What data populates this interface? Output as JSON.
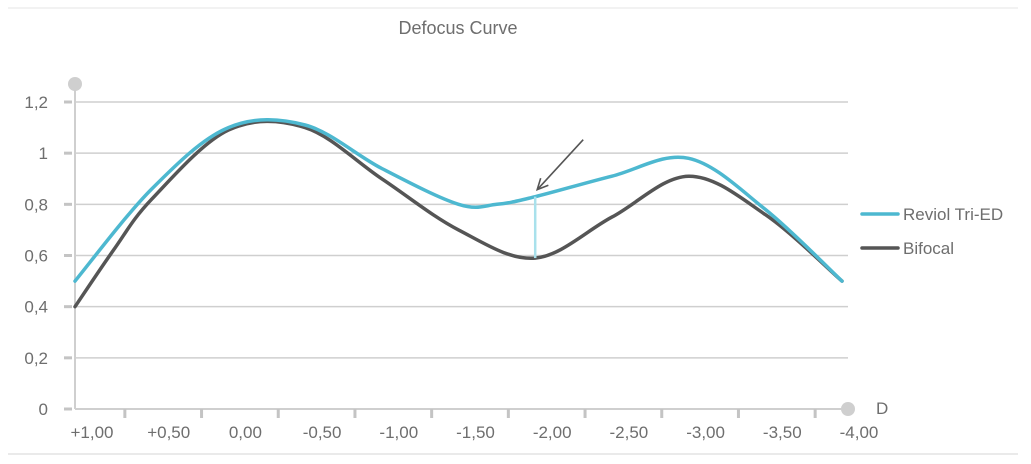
{
  "chart_data": {
    "type": "line",
    "title": "Defocus Curve",
    "xlabel": "D",
    "ylabel": "",
    "x_ticks": [
      "+1,00",
      "+0,50",
      "0,00",
      "-0,50",
      "-1,00",
      "-1,50",
      "-2,00",
      "-2,50",
      "-3,00",
      "-3,50",
      "-4,00"
    ],
    "x_tick_values": [
      1.0,
      0.5,
      0.0,
      -0.5,
      -1.0,
      -1.5,
      -2.0,
      -2.5,
      -3.0,
      -3.5,
      -4.0
    ],
    "xlim": [
      1.0,
      -4.0
    ],
    "y_ticks": [
      "0",
      "0,2",
      "0,4",
      "0,6",
      "0,8",
      "1",
      "1,2"
    ],
    "y_tick_values": [
      0,
      0.2,
      0.4,
      0.6,
      0.8,
      1.0,
      1.2
    ],
    "ylim": [
      0,
      1.2
    ],
    "grid": true,
    "legend_position": "right",
    "series": [
      {
        "name": "Reviol Tri-ED",
        "color": "#4db8d0",
        "x": [
          1.0,
          0.5,
          0.0,
          -0.5,
          -1.0,
          -1.5,
          -1.75,
          -2.0,
          -2.5,
          -3.0,
          -3.5,
          -4.0
        ],
        "y": [
          0.5,
          0.86,
          1.1,
          1.11,
          0.94,
          0.8,
          0.8,
          0.83,
          0.91,
          0.98,
          0.78,
          0.5
        ]
      },
      {
        "name": "Bifocal",
        "color": "#555555",
        "x": [
          1.0,
          0.75,
          0.5,
          0.0,
          -0.5,
          -1.0,
          -1.5,
          -2.0,
          -2.5,
          -3.0,
          -3.5,
          -4.0
        ],
        "y": [
          0.4,
          0.62,
          0.82,
          1.09,
          1.1,
          0.9,
          0.7,
          0.59,
          0.75,
          0.91,
          0.76,
          0.5
        ]
      }
    ],
    "annotation": {
      "type": "arrow",
      "target_x": -2.0,
      "target_y": 0.83,
      "gap_marker": {
        "x": -2.0,
        "y_from": 0.59,
        "y_to": 0.83,
        "color": "#a9e1ec"
      }
    }
  }
}
